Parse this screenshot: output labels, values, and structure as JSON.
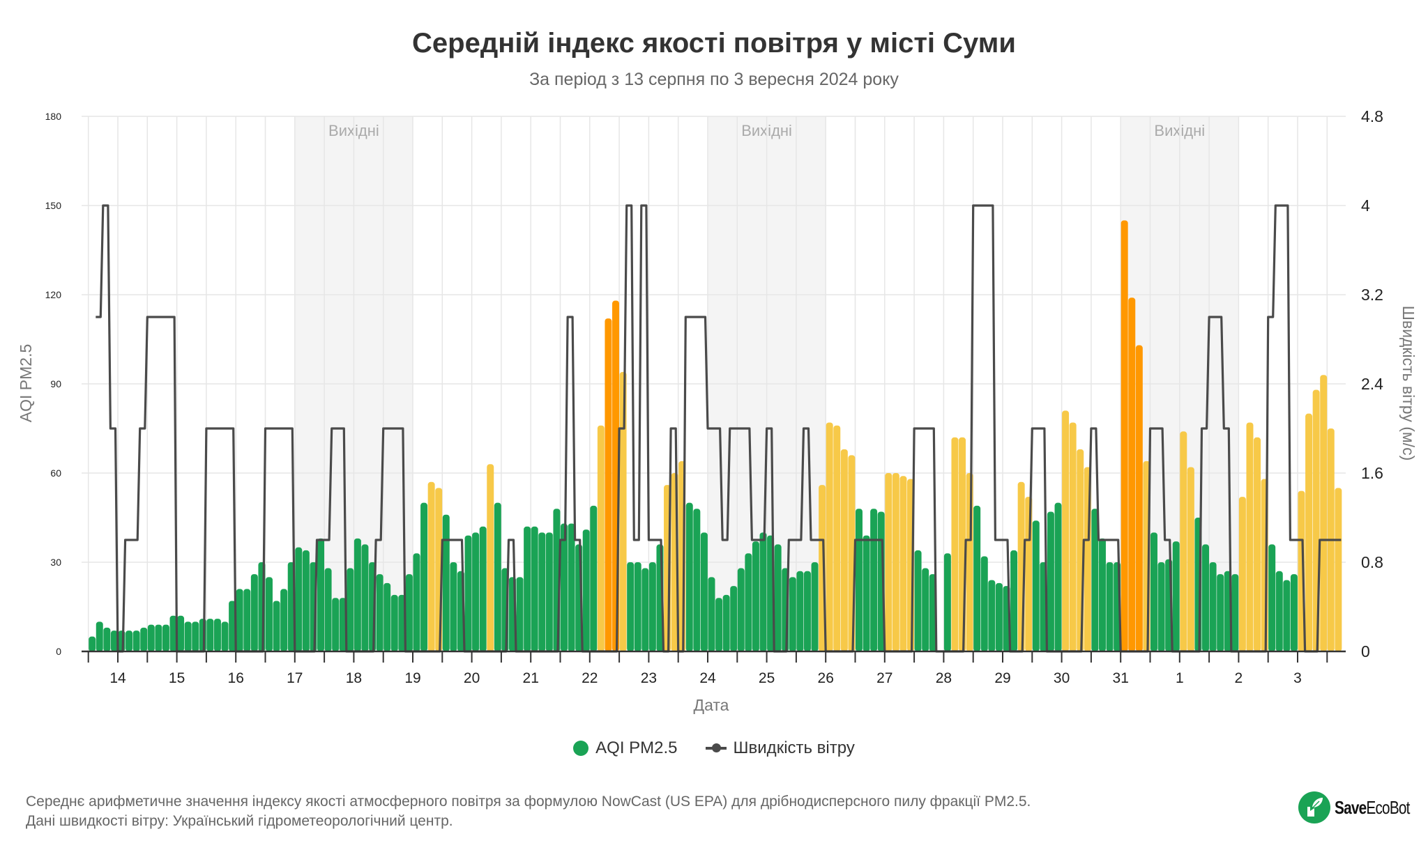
{
  "title": "Середній індекс якості повітря у місті Суми",
  "subtitle": "За період з 13 серпня по 3 вересня 2024 року",
  "legend": {
    "aqi": "AQI PM2.5",
    "wind": "Швидкість вітру"
  },
  "footer": {
    "line1": "Середнє арифметичне значення індексу якості атмосферного повітря за формулою NowCast (US EPA) для дрібнодисперсного пилу фракції PM2.5.",
    "line2": "Дані швидкості вітру: Український гідрометеорологічний центр."
  },
  "logo": {
    "text_bold": "Save",
    "text_regular": "EcoBot"
  },
  "colors": {
    "good": "#1aa355",
    "moderate": "#f7c948",
    "unhealthy_sensitive": "#ff9800",
    "wind": "#4a4a4a",
    "weekend": "#f4f4f4"
  },
  "chart_data": {
    "type": "bar+line",
    "xlabel": "Дата",
    "ylabel": "AQI PM2.5",
    "y2label": "Швидкість вітру (м/с)",
    "ylim": [
      0,
      180
    ],
    "y_ticks": [
      "0",
      "30",
      "60",
      "90",
      "120",
      "150",
      "180"
    ],
    "y2lim": [
      0,
      4.8
    ],
    "y2_ticks": [
      "0",
      "0.8",
      "1.6",
      "2.4",
      "3.2",
      "4",
      "4.8"
    ],
    "x_tick_labels": [
      "14",
      "15",
      "16",
      "17",
      "18",
      "19",
      "20",
      "21",
      "22",
      "23",
      "24",
      "25",
      "26",
      "27",
      "28",
      "29",
      "30",
      "31",
      "1",
      "2",
      "3"
    ],
    "x_start": "2024-08-13 12:00",
    "interval_hours": 3,
    "grid": true,
    "legend_position": "bottom",
    "weekend_label": "Вихідні",
    "weekends": [
      [
        "2024-08-17",
        "2024-08-18"
      ],
      [
        "2024-08-24",
        "2024-08-25"
      ],
      [
        "2024-08-31",
        "2024-09-01"
      ]
    ],
    "series": [
      {
        "name": "AQI PM2.5",
        "type": "bar",
        "axis": "left",
        "values": [
          5,
          10,
          8,
          7,
          7,
          7,
          7,
          8,
          9,
          9,
          9,
          12,
          12,
          10,
          10,
          11,
          11,
          11,
          10,
          17,
          21,
          21,
          26,
          30,
          25,
          17,
          21,
          30,
          35,
          34,
          30,
          38,
          28,
          18,
          18,
          28,
          38,
          36,
          30,
          26,
          23,
          19,
          19,
          26,
          33,
          50,
          57,
          55,
          46,
          30,
          27,
          39,
          40,
          42,
          63,
          50,
          28,
          25,
          25,
          42,
          42,
          40,
          40,
          48,
          43,
          43,
          36,
          41,
          49,
          76,
          112,
          118,
          94,
          30,
          30,
          28,
          30,
          36,
          56,
          60,
          64,
          50,
          48,
          40,
          25,
          18,
          19,
          22,
          28,
          33,
          37,
          40,
          39,
          36,
          28,
          25,
          27,
          27,
          30,
          56,
          77,
          76,
          68,
          66,
          48,
          39,
          48,
          47,
          60,
          60,
          59,
          58,
          34,
          28,
          26,
          null,
          33,
          72,
          72,
          60,
          49,
          32,
          24,
          23,
          22,
          34,
          57,
          52,
          44,
          30,
          47,
          50,
          81,
          77,
          68,
          62,
          48,
          38,
          30,
          30,
          145,
          119,
          103,
          64,
          40,
          30,
          31,
          37,
          74,
          62,
          45,
          36,
          30,
          26,
          27,
          26,
          52,
          77,
          72,
          58,
          36,
          27,
          24,
          26,
          54,
          80,
          88,
          93,
          75,
          55
        ]
      },
      {
        "name": "Швидкість вітру",
        "type": "line",
        "axis": "right",
        "values": [
          null,
          3,
          4,
          2,
          0,
          1,
          1,
          2,
          3,
          3,
          3,
          3,
          0,
          0,
          0,
          0,
          2,
          2,
          2,
          2,
          0,
          0,
          0,
          0,
          2,
          2,
          2,
          2,
          0,
          0,
          0,
          1,
          1,
          2,
          2,
          0,
          0,
          0,
          0,
          1,
          2,
          2,
          2,
          0,
          0,
          0,
          0,
          0,
          1,
          1,
          1,
          0,
          0,
          0,
          0,
          0,
          0,
          1,
          0,
          0,
          0,
          0,
          0,
          0,
          1,
          3,
          1,
          0,
          0,
          0,
          0,
          0,
          2,
          4,
          1,
          4,
          1,
          1,
          0,
          2,
          0,
          3,
          3,
          3,
          2,
          2,
          1,
          2,
          2,
          2,
          1,
          1,
          2,
          0,
          0,
          1,
          1,
          2,
          1,
          1,
          0,
          0,
          0,
          0,
          1,
          1,
          1,
          1,
          0,
          0,
          0,
          0,
          2,
          2,
          2,
          0,
          0,
          0,
          0,
          1,
          4,
          4,
          4,
          1,
          1,
          0,
          0,
          1,
          2,
          2,
          0,
          0,
          0,
          0,
          0,
          1,
          2,
          1,
          1,
          1,
          0,
          0,
          0,
          0,
          2,
          2,
          1,
          0,
          0,
          0,
          0,
          2,
          3,
          3,
          2,
          0,
          0,
          0,
          0,
          0,
          3,
          4,
          4,
          1,
          1,
          0,
          0,
          1,
          1,
          1
        ]
      }
    ]
  }
}
